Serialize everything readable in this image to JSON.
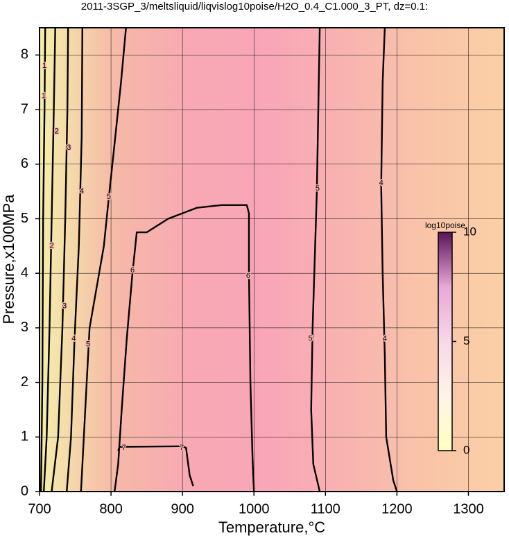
{
  "chart_data": {
    "type": "contour",
    "title": "2011-3SGP_3/meltsliquid/liqvislog10poise/H2O_0.4_C1.000_3_PT, dz=0.1:",
    "xlabel": "Temperature,°C",
    "ylabel": "Pressure,x100MPa",
    "xlim": [
      700,
      1350
    ],
    "ylim": [
      0,
      8.5
    ],
    "xticks": [
      700,
      800,
      900,
      1000,
      1100,
      1200,
      1300
    ],
    "yticks": [
      0,
      1,
      2,
      3,
      4,
      5,
      6,
      7,
      8
    ],
    "grid": true,
    "colorbar": {
      "label": "log10poise",
      "lim": [
        0,
        10
      ],
      "ticks": [
        0,
        5,
        10
      ],
      "colors": [
        "#ffffc0",
        "#fff4e8",
        "#f7d8e8",
        "#e8a8d8",
        "#5a1458"
      ]
    },
    "background_colors": [
      "#f4efaa",
      "#f6b8a8",
      "#f8a8b4",
      "#f8a6b8",
      "#f8b4b0",
      "#f9c4a8",
      "#fad0a6"
    ],
    "contours": [
      {
        "level": 1,
        "x": [
          708,
          707,
          705,
          704,
          702
        ],
        "y": [
          8.5,
          7,
          5,
          2,
          0
        ],
        "label_at": [
          [
            707,
            7.8
          ],
          [
            706,
            7.25
          ]
        ]
      },
      {
        "level": 2,
        "x": [
          722,
          720,
          717,
          714,
          710,
          706
        ],
        "y": [
          8.5,
          7,
          5,
          3,
          1,
          0
        ],
        "label_at": [
          [
            724,
            6.6
          ],
          [
            717,
            4.5
          ]
        ]
      },
      {
        "level": 3,
        "x": [
          740,
          739,
          736,
          732,
          726,
          717
        ],
        "y": [
          8.5,
          7,
          5,
          3,
          1,
          0
        ],
        "label_at": [
          [
            741,
            6.3
          ],
          [
            735,
            3.4
          ]
        ]
      },
      {
        "level": 4,
        "x": [
          760,
          759,
          755,
          749,
          744,
          738
        ],
        "y": [
          8.5,
          6.5,
          4.5,
          2.8,
          1,
          0
        ],
        "label_at": [
          [
            759,
            5.5
          ],
          [
            748,
            2.8
          ]
        ]
      },
      {
        "level": 5,
        "x": [
          821,
          814,
          802,
          797,
          790,
          770,
          766,
          762,
          758
        ],
        "y": [
          8.5,
          7.5,
          6,
          5.4,
          4.5,
          3,
          2,
          1,
          0
        ],
        "label_at": [
          [
            797,
            5.4
          ],
          [
            768,
            2.7
          ]
        ]
      },
      {
        "level": 6,
        "x": [
          805,
          810,
          815,
          822,
          830,
          836,
          850,
          880,
          920,
          955,
          990,
          993,
          993,
          995,
          998,
          1000
        ],
        "y": [
          0,
          0.5,
          1.5,
          2.8,
          4,
          4.75,
          4.75,
          5.0,
          5.2,
          5.25,
          5.25,
          5.1,
          4,
          2,
          0.6,
          0
        ],
        "label_at": [
          [
            830,
            4.05
          ],
          [
            992,
            3.95
          ]
        ]
      },
      {
        "level": 7,
        "x": [
          810,
          812,
          900,
          905,
          910,
          915
        ],
        "y": [
          0.75,
          0.82,
          0.83,
          0.8,
          0.3,
          0.1
        ],
        "label_at": [
          [
            818,
            0.8
          ],
          [
            899,
            0.8
          ]
        ]
      },
      {
        "level": 5,
        "x": [
          1092,
          1090,
          1088,
          1082,
          1080,
          1083,
          1092
        ],
        "y": [
          8.5,
          7,
          5.5,
          3,
          1.5,
          0.5,
          0
        ],
        "label_at": [
          [
            1089,
            5.55
          ],
          [
            1079,
            2.8
          ]
        ]
      },
      {
        "level": 4,
        "x": [
          1183,
          1180,
          1178,
          1180,
          1183,
          1185,
          1195,
          1200
        ],
        "y": [
          8.5,
          7.5,
          5.6,
          4,
          2.5,
          1,
          0.2,
          0
        ],
        "label_at": [
          [
            1178,
            5.65
          ],
          [
            1183,
            2.8
          ]
        ]
      }
    ]
  }
}
